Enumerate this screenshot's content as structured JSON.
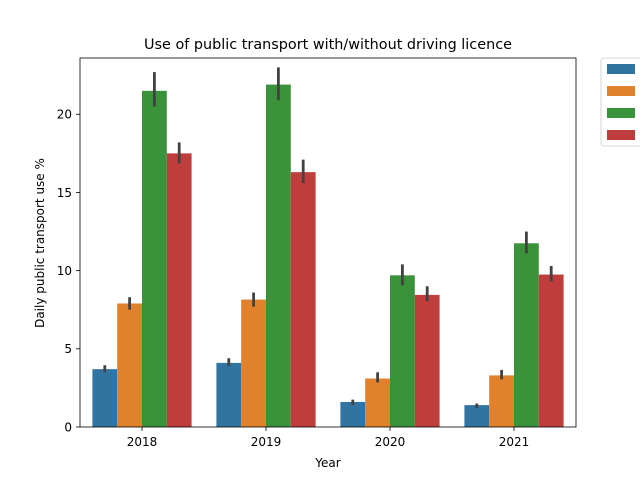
{
  "chart_data": {
    "type": "bar",
    "title": "Use of public transport with/without driving licence",
    "xlabel": "Year",
    "ylabel": "Daily public transport use %",
    "categories": [
      "2018",
      "2019",
      "2020",
      "2021"
    ],
    "ylim": [
      0,
      23.6
    ],
    "yticks": [
      0,
      5,
      10,
      15,
      20
    ],
    "grid": false,
    "legend_position": "outside-top-right",
    "series": [
      {
        "color": "#3274a1",
        "values": [
          3.7,
          4.1,
          1.6,
          1.4
        ],
        "error_low": [
          3.5,
          3.9,
          1.4,
          1.2
        ],
        "error_high": [
          3.95,
          4.4,
          1.75,
          1.5
        ]
      },
      {
        "color": "#e1812c",
        "values": [
          7.9,
          8.15,
          3.1,
          3.3
        ],
        "error_low": [
          7.5,
          7.7,
          2.85,
          3.05
        ],
        "error_high": [
          8.3,
          8.6,
          3.5,
          3.65
        ]
      },
      {
        "color": "#3a923a",
        "values": [
          21.5,
          21.9,
          9.7,
          11.75
        ],
        "error_low": [
          20.5,
          20.9,
          9.05,
          11.1
        ],
        "error_high": [
          22.7,
          23.0,
          10.4,
          12.5
        ]
      },
      {
        "color": "#c03d3e",
        "values": [
          17.5,
          16.3,
          8.45,
          9.75
        ],
        "error_low": [
          16.85,
          15.6,
          8.05,
          9.3
        ],
        "error_high": [
          18.2,
          17.1,
          9.0,
          10.3
        ]
      }
    ]
  }
}
